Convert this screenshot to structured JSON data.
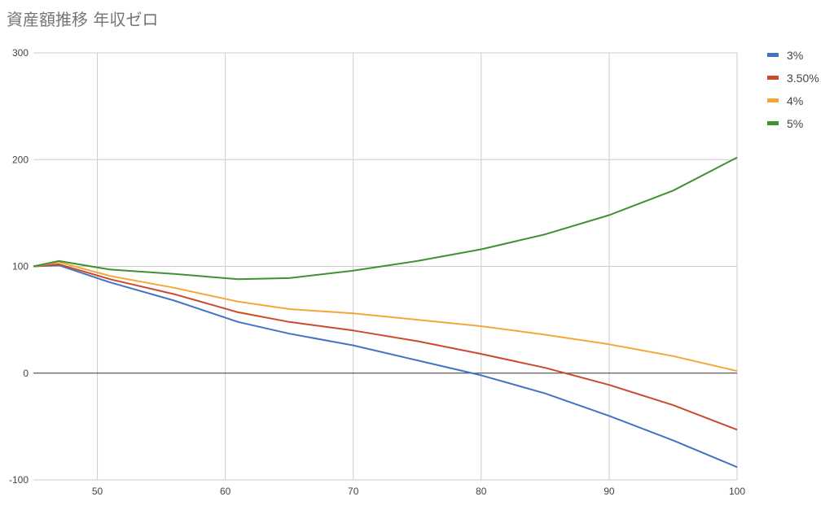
{
  "chart_data": {
    "type": "line",
    "title": "資産額推移 年収ゼロ",
    "xlabel": "",
    "ylabel": "",
    "xlim": [
      45,
      100
    ],
    "ylim": [
      -100,
      300
    ],
    "x_ticks": [
      50,
      60,
      70,
      80,
      90,
      100
    ],
    "y_ticks": [
      -100,
      0,
      100,
      200,
      300
    ],
    "grid": true,
    "legend_position": "right",
    "series": [
      {
        "name": "3%",
        "color": "#4472c4",
        "x": [
          45,
          47,
          51,
          56,
          61,
          65,
          70,
          75,
          80,
          85,
          90,
          95,
          100
        ],
        "y": [
          100,
          101,
          85,
          68,
          48,
          37,
          26,
          12,
          -2,
          -19,
          -40,
          -63,
          -88
        ]
      },
      {
        "name": "3.50%",
        "color": "#cc4a2c",
        "x": [
          45,
          47,
          51,
          56,
          61,
          65,
          70,
          75,
          80,
          85,
          90,
          95,
          100
        ],
        "y": [
          100,
          102,
          88,
          74,
          57,
          48,
          40,
          30,
          18,
          5,
          -11,
          -30,
          -53
        ]
      },
      {
        "name": "4%",
        "color": "#f4a638",
        "x": [
          45,
          47,
          51,
          56,
          61,
          65,
          70,
          75,
          80,
          85,
          90,
          95,
          100
        ],
        "y": [
          100,
          104,
          91,
          80,
          67,
          60,
          56,
          50,
          44,
          36,
          27,
          16,
          2
        ]
      },
      {
        "name": "5%",
        "color": "#3f9132",
        "x": [
          45,
          47,
          51,
          56,
          61,
          65,
          70,
          75,
          80,
          85,
          90,
          95,
          100
        ],
        "y": [
          100,
          105,
          97,
          93,
          88,
          89,
          96,
          105,
          116,
          130,
          148,
          171,
          202
        ]
      }
    ]
  }
}
